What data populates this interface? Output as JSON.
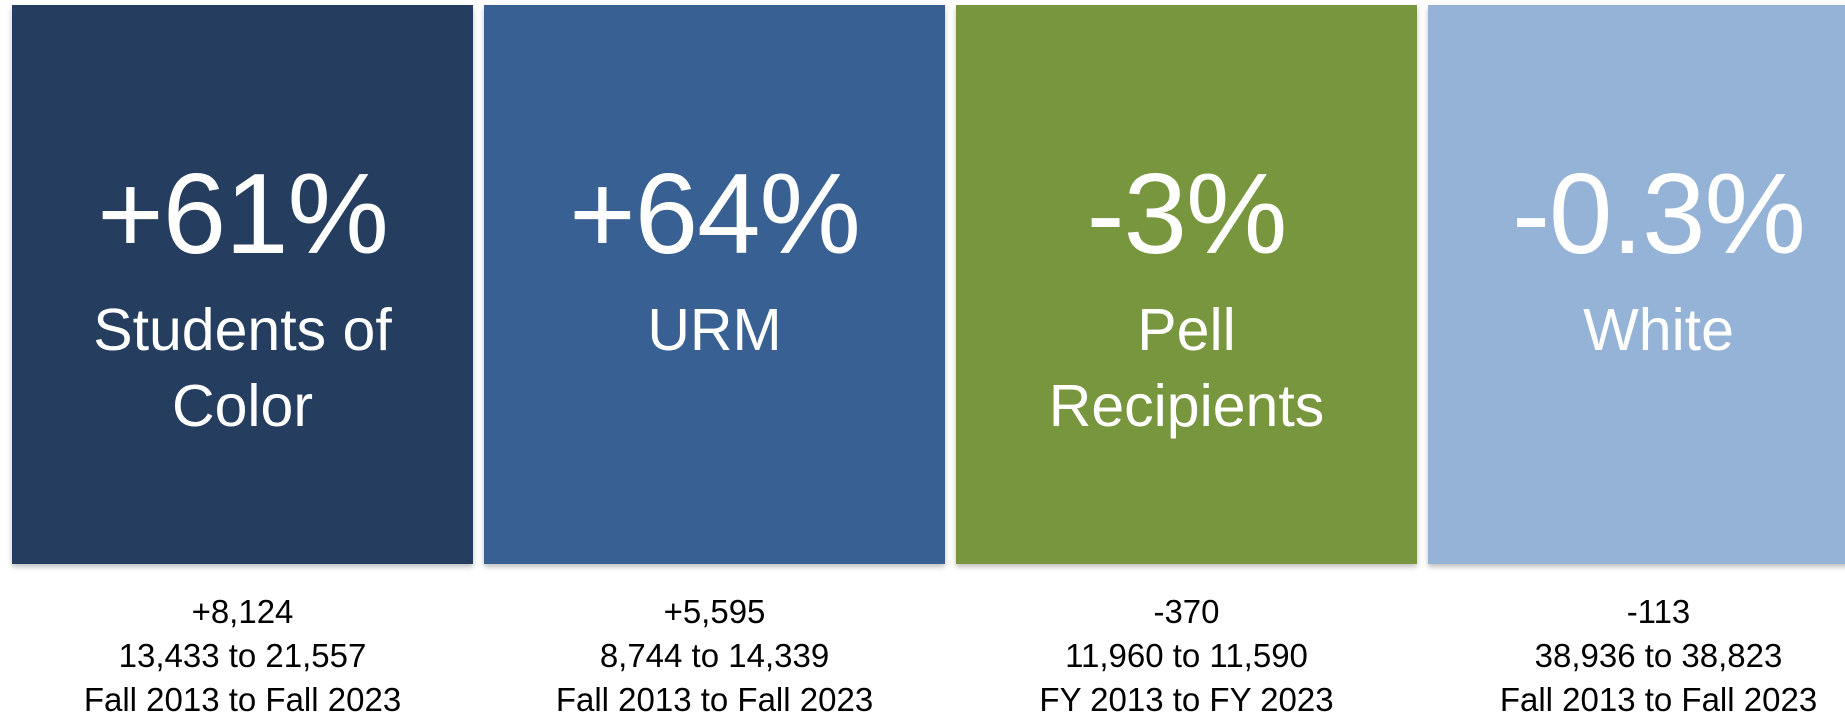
{
  "cards": [
    {
      "big": "+61%",
      "label": "Students of Color",
      "change": "+8,124",
      "range": "13,433 to 21,557",
      "period": "Fall 2013 to Fall 2023",
      "color": "#253d5e"
    },
    {
      "big": "+64%",
      "label": "URM",
      "change": "+5,595",
      "range": "8,744 to 14,339",
      "period": "Fall 2013 to Fall 2023",
      "color": "#386092"
    },
    {
      "big": "-3%",
      "label": "Pell Recipients",
      "change": "-370",
      "range": "11,960 to 11,590",
      "period": "FY 2013 to FY 2023",
      "color": "#78963e"
    },
    {
      "big": "-0.3%",
      "label": "White",
      "change": "-113",
      "range": "38,936 to 38,823",
      "period": "Fall 2013 to Fall 2023",
      "color": "#95b3d7"
    }
  ]
}
